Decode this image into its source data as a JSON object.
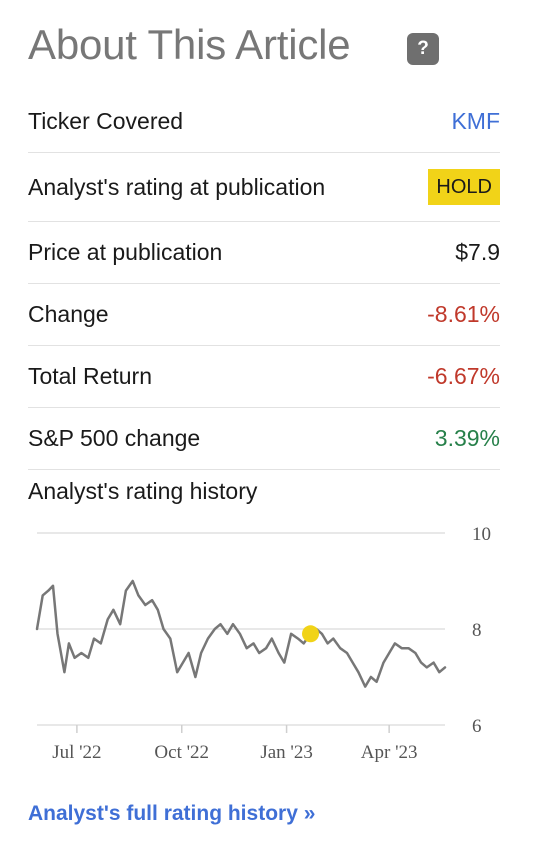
{
  "header": {
    "title": "About This Article",
    "help_label": "?"
  },
  "rows": [
    {
      "label": "Ticker Covered",
      "value": "KMF"
    },
    {
      "label": "Analyst's rating at publication",
      "value": "HOLD"
    },
    {
      "label": "Price at publication",
      "value": "$7.9"
    },
    {
      "label": "Change",
      "value": "-8.61%"
    },
    {
      "label": "Total Return",
      "value": "-6.67%"
    },
    {
      "label": "S&P 500 change",
      "value": "3.39%"
    }
  ],
  "colors": {
    "link": "#3f6fd6",
    "negative": "#c0392b",
    "positive": "#27804a",
    "hold_badge": "#f1d318",
    "line": "#777777",
    "marker": "#f1d318"
  },
  "history_title": "Analyst's rating history",
  "chart_data": {
    "type": "line",
    "x": [
      "2022-05-27",
      "2022-06-01",
      "2022-06-06",
      "2022-06-10",
      "2022-06-14",
      "2022-06-20",
      "2022-06-24",
      "2022-06-29",
      "2022-07-05",
      "2022-07-11",
      "2022-07-16",
      "2022-07-22",
      "2022-07-28",
      "2022-08-02",
      "2022-08-08",
      "2022-08-13",
      "2022-08-19",
      "2022-08-24",
      "2022-08-30",
      "2022-09-05",
      "2022-09-10",
      "2022-09-15",
      "2022-09-21",
      "2022-09-27",
      "2022-10-02",
      "2022-10-07",
      "2022-10-13",
      "2022-10-18",
      "2022-10-24",
      "2022-10-30",
      "2022-11-04",
      "2022-11-10",
      "2022-11-15",
      "2022-11-21",
      "2022-11-27",
      "2022-12-03",
      "2022-12-08",
      "2022-12-14",
      "2022-12-19",
      "2022-12-25",
      "2022-12-30",
      "2023-01-05",
      "2023-01-11",
      "2023-01-16",
      "2023-01-22",
      "2023-01-27",
      "2023-02-01",
      "2023-02-06",
      "2023-02-11",
      "2023-02-17",
      "2023-02-23",
      "2023-02-28",
      "2023-03-05",
      "2023-03-11",
      "2023-03-16",
      "2023-03-21",
      "2023-03-27",
      "2023-04-01",
      "2023-04-06",
      "2023-04-12",
      "2023-04-18",
      "2023-04-24",
      "2023-04-29",
      "2023-05-04",
      "2023-05-10",
      "2023-05-15",
      "2023-05-20"
    ],
    "series": [
      {
        "values": [
          8.0,
          8.7,
          8.8,
          8.9,
          7.9,
          7.1,
          7.7,
          7.4,
          7.5,
          7.4,
          7.8,
          7.7,
          8.2,
          8.4,
          8.1,
          8.8,
          9.0,
          8.7,
          8.5,
          8.6,
          8.4,
          8.0,
          7.8,
          7.1,
          7.3,
          7.5,
          7.0,
          7.5,
          7.8,
          8.0,
          8.1,
          7.9,
          8.1,
          7.9,
          7.6,
          7.7,
          7.5,
          7.6,
          7.8,
          7.5,
          7.3,
          7.9,
          7.8,
          7.7,
          7.9,
          8.0,
          7.9,
          7.7,
          7.8,
          7.6,
          7.5,
          7.3,
          7.1,
          6.8,
          7.0,
          6.9,
          7.3,
          7.5,
          7.7,
          7.6,
          7.6,
          7.5,
          7.3,
          7.2,
          7.3,
          7.1,
          7.2
        ]
      }
    ],
    "ylim": [
      6,
      10
    ],
    "y_ticks": [
      "10",
      "8",
      "6"
    ],
    "x_ticks": [
      {
        "date": "2022-07-01",
        "label": "Jul '22"
      },
      {
        "date": "2022-10-01",
        "label": "Oct '22"
      },
      {
        "date": "2023-01-01",
        "label": "Jan '23"
      },
      {
        "date": "2023-04-01",
        "label": "Apr '23"
      }
    ],
    "rating_marker": {
      "date": "2023-01-22",
      "value": 7.9,
      "rating": "HOLD"
    },
    "grid": true
  },
  "footer": {
    "link_label": "Analyst's full rating history »"
  }
}
